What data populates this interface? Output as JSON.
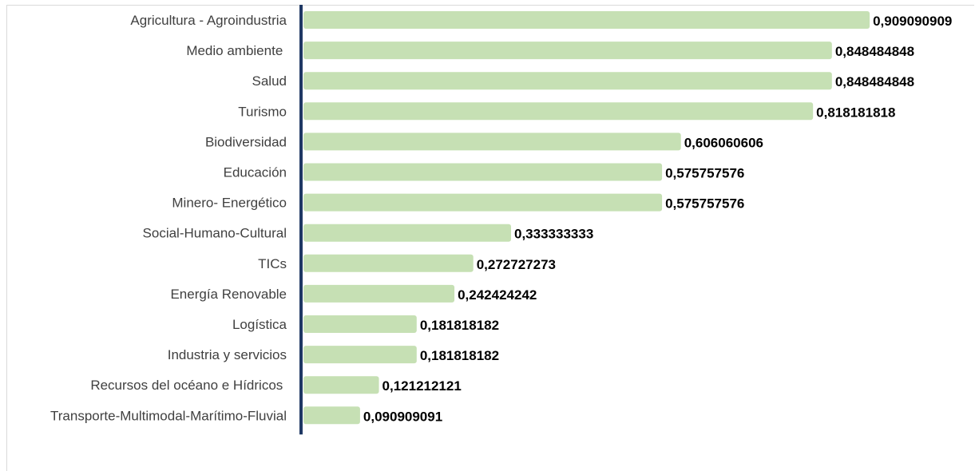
{
  "chart_data": {
    "type": "bar",
    "orientation": "horizontal",
    "categories": [
      "Agricultura - Agroindustria",
      "Medio ambiente ",
      "Salud",
      "Turismo",
      "Biodiversidad",
      "Educación",
      "Minero- Energético",
      "Social-Humano-Cultural",
      "TICs",
      "Energía Renovable",
      "Logística",
      "Industria y servicios",
      "Recursos del océano e Hídricos ",
      "Transporte-Multimodal-Marítimo-Fluvial"
    ],
    "values": [
      0.909090909,
      0.848484848,
      0.848484848,
      0.818181818,
      0.606060606,
      0.575757576,
      0.575757576,
      0.333333333,
      0.272727273,
      0.242424242,
      0.181818182,
      0.181818182,
      0.121212121,
      0.090909091
    ],
    "value_labels": [
      "0,909090909",
      "0,848484848",
      "0,848484848",
      "0,818181818",
      "0,606060606",
      "0,575757576",
      "0,575757576",
      "0,333333333",
      "0,272727273",
      "0,242424242",
      "0,181818182",
      "0,181818182",
      "0,121212121",
      "0,090909091"
    ],
    "title": "",
    "xlabel": "",
    "ylabel": "",
    "xlim": [
      0,
      1
    ],
    "grid": false,
    "legend": "none",
    "colors": {
      "bar": "#c6e0b4",
      "axis": "#1f3864",
      "category_text": "#404040",
      "value_text": "#000000"
    }
  }
}
